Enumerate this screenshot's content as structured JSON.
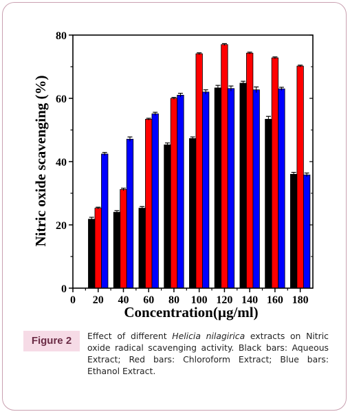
{
  "chart_data": {
    "type": "bar",
    "xlabel": "Concentration(µg/ml)",
    "ylabel": "Nitric oxide scavenging (%)",
    "categories": [
      "20",
      "40",
      "60",
      "80",
      "100",
      "120",
      "140",
      "160",
      "180"
    ],
    "x_ticks": [
      "0",
      "20",
      "40",
      "60",
      "80",
      "100",
      "120",
      "140",
      "160",
      "180"
    ],
    "y_ticks": [
      "0",
      "20",
      "40",
      "60",
      "80"
    ],
    "ylim": [
      0,
      80
    ],
    "xlim": [
      0,
      190
    ],
    "grid": false,
    "legend": "none",
    "series": [
      {
        "color": "#000000",
        "values": [
          21.8,
          24.0,
          25.3,
          45.3,
          47.3,
          63.3,
          64.8,
          53.4,
          36.0
        ],
        "errors": [
          0.6,
          0.5,
          0.5,
          0.6,
          0.5,
          0.8,
          0.6,
          0.9,
          0.6
        ]
      },
      {
        "color": "#ff0000",
        "values": [
          25.3,
          31.2,
          53.4,
          60.0,
          74.1,
          77.0,
          74.3,
          72.8,
          70.2
        ],
        "errors": [
          0.3,
          0.4,
          0.3,
          0.3,
          0.3,
          0.3,
          0.3,
          0.3,
          0.3
        ]
      },
      {
        "color": "#0000ff",
        "values": [
          42.4,
          47.1,
          55.1,
          61.0,
          62.0,
          63.1,
          62.7,
          63.0,
          35.8
        ],
        "errors": [
          0.5,
          0.7,
          0.5,
          0.6,
          0.7,
          0.8,
          0.9,
          0.5,
          0.6
        ]
      }
    ]
  },
  "caption": {
    "label": "Figure 2",
    "text_before": "Effect of different ",
    "species": "Helicia nilagirica",
    "text_after": " extracts on Nitric oxide radical scavenging activity. Black bars: Aqueous Extract; Red bars:  Chloroform Extract; Blue bars: Ethanol Extract."
  }
}
